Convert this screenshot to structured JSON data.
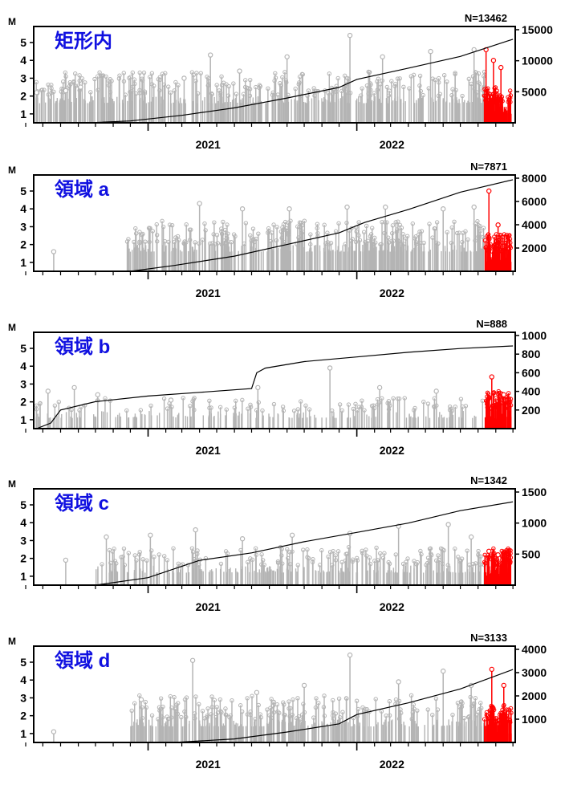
{
  "chart_data": [
    {
      "type": "line",
      "title": "矩形内",
      "count_label": "N=13462",
      "ylabel": "M",
      "x_range": [
        "2020-06-15",
        "2022-10-05"
      ],
      "x_tick_labels": [
        "2021",
        "2022"
      ],
      "mag_range": [
        0.5,
        5.9
      ],
      "mag_ticks": [
        1,
        2,
        3,
        4,
        5
      ],
      "count_range": [
        0,
        15000
      ],
      "count_ticks": [
        5000,
        10000,
        15000
      ],
      "series": [
        {
          "type": "line",
          "points": [
            [
              "2020-09-20",
              0
            ],
            [
              "2020-12-01",
              300
            ],
            [
              "2021-03-01",
              1200
            ],
            [
              "2021-06-01",
              2400
            ],
            [
              "2021-09-01",
              4000
            ],
            [
              "2021-12-01",
              5700
            ],
            [
              "2022-01-01",
              7000
            ],
            [
              "2022-04-01",
              8800
            ],
            [
              "2022-07-01",
              10700
            ],
            [
              "2022-10-01",
              13462
            ]
          ]
        },
        {
          "type": "stem",
          "color": "gray",
          "peaks": [
            [
              "2020-06-20",
              2.2
            ],
            [
              "2020-08-10",
              2.3
            ],
            [
              "2020-09-05",
              2.5
            ],
            [
              "2021-03-05",
              3.0
            ],
            [
              "2021-04-20",
              4.3
            ],
            [
              "2021-06-10",
              3.4
            ],
            [
              "2021-09-01",
              4.2
            ],
            [
              "2021-12-20",
              5.4
            ],
            [
              "2022-02-15",
              4.2
            ],
            [
              "2022-05-10",
              4.5
            ],
            [
              "2022-07-25",
              4.6
            ]
          ]
        },
        {
          "type": "stem",
          "color": "red",
          "peaks": [
            [
              "2022-08-15",
              4.6
            ],
            [
              "2022-08-28",
              4.0
            ],
            [
              "2022-09-10",
              3.6
            ]
          ]
        }
      ]
    },
    {
      "type": "line",
      "title": "領域 a",
      "count_label": "N=7871",
      "ylabel": "M",
      "x_range": [
        "2020-06-15",
        "2022-10-05"
      ],
      "x_tick_labels": [
        "2021",
        "2022"
      ],
      "mag_range": [
        0.5,
        5.9
      ],
      "mag_ticks": [
        1,
        2,
        3,
        4,
        5
      ],
      "count_range": [
        0,
        8000
      ],
      "count_ticks": [
        2000,
        4000,
        6000,
        8000
      ],
      "series": [
        {
          "type": "line",
          "points": [
            [
              "2020-12-01",
              0
            ],
            [
              "2021-02-15",
              500
            ],
            [
              "2021-06-01",
              1300
            ],
            [
              "2021-09-01",
              2300
            ],
            [
              "2021-12-01",
              3300
            ],
            [
              "2022-01-15",
              4200
            ],
            [
              "2022-04-01",
              5300
            ],
            [
              "2022-07-01",
              6800
            ],
            [
              "2022-10-01",
              7871
            ]
          ]
        },
        {
          "type": "stem",
          "color": "gray",
          "peaks": [
            [
              "2020-07-20",
              1.6
            ],
            [
              "2021-04-01",
              4.3
            ],
            [
              "2021-06-15",
              4.0
            ],
            [
              "2021-09-05",
              4.0
            ],
            [
              "2021-12-15",
              4.1
            ],
            [
              "2022-02-20",
              4.1
            ],
            [
              "2022-06-01",
              4.0
            ],
            [
              "2022-07-25",
              4.1
            ]
          ]
        },
        {
          "type": "stem",
          "color": "red",
          "peaks": [
            [
              "2022-08-20",
              5.0
            ],
            [
              "2022-09-05",
              3.1
            ]
          ]
        }
      ]
    },
    {
      "type": "line",
      "title": "領域 b",
      "count_label": "N=888",
      "ylabel": "M",
      "x_range": [
        "2020-06-15",
        "2022-10-05"
      ],
      "x_tick_labels": [
        "2021",
        "2022"
      ],
      "mag_range": [
        0.5,
        5.9
      ],
      "mag_ticks": [
        1,
        2,
        3,
        4,
        5
      ],
      "count_range": [
        0,
        1000
      ],
      "count_ticks": [
        200,
        400,
        600,
        800,
        1000
      ],
      "series": [
        {
          "type": "line",
          "points": [
            [
              "2020-06-20",
              0
            ],
            [
              "2020-07-15",
              60
            ],
            [
              "2020-08-01",
              200
            ],
            [
              "2020-10-01",
              290
            ],
            [
              "2021-01-01",
              350
            ],
            [
              "2021-04-01",
              390
            ],
            [
              "2021-07-01",
              430
            ],
            [
              "2021-07-10",
              600
            ],
            [
              "2021-07-25",
              650
            ],
            [
              "2021-10-01",
              720
            ],
            [
              "2022-01-01",
              770
            ],
            [
              "2022-04-01",
              820
            ],
            [
              "2022-07-01",
              860
            ],
            [
              "2022-10-01",
              888
            ]
          ]
        },
        {
          "type": "stem",
          "color": "gray",
          "peaks": [
            [
              "2020-07-10",
              2.6
            ],
            [
              "2020-08-25",
              2.8
            ],
            [
              "2020-10-05",
              2.4
            ],
            [
              "2021-02-10",
              2.1
            ],
            [
              "2021-07-12",
              2.8
            ],
            [
              "2021-11-15",
              3.9
            ],
            [
              "2022-02-10",
              2.8
            ],
            [
              "2022-05-20",
              2.6
            ]
          ]
        },
        {
          "type": "stem",
          "color": "red",
          "peaks": [
            [
              "2022-08-25",
              3.4
            ],
            [
              "2022-09-15",
              2.4
            ]
          ]
        }
      ]
    },
    {
      "type": "line",
      "title": "領域 c",
      "count_label": "N=1342",
      "ylabel": "M",
      "x_range": [
        "2020-06-15",
        "2022-10-05"
      ],
      "x_tick_labels": [
        "2021",
        "2022"
      ],
      "mag_range": [
        0.5,
        5.9
      ],
      "mag_ticks": [
        1,
        2,
        3,
        4,
        5
      ],
      "count_range": [
        0,
        1500
      ],
      "count_ticks": [
        500,
        1000,
        1500
      ],
      "series": [
        {
          "type": "line",
          "points": [
            [
              "2020-10-01",
              0
            ],
            [
              "2021-01-01",
              120
            ],
            [
              "2021-04-01",
              400
            ],
            [
              "2021-07-01",
              520
            ],
            [
              "2021-10-01",
              700
            ],
            [
              "2022-01-01",
              850
            ],
            [
              "2022-04-01",
              1000
            ],
            [
              "2022-07-01",
              1200
            ],
            [
              "2022-10-01",
              1342
            ]
          ]
        },
        {
          "type": "stem",
          "color": "gray",
          "peaks": [
            [
              "2020-08-10",
              1.9
            ],
            [
              "2020-10-20",
              3.2
            ],
            [
              "2021-01-05",
              3.3
            ],
            [
              "2021-03-25",
              3.6
            ],
            [
              "2021-06-15",
              3.1
            ],
            [
              "2021-09-10",
              3.3
            ],
            [
              "2021-12-20",
              3.4
            ],
            [
              "2022-03-15",
              3.8
            ],
            [
              "2022-06-10",
              3.9
            ],
            [
              "2022-07-20",
              3.2
            ]
          ]
        },
        {
          "type": "stem",
          "color": "red",
          "peaks": [
            [
              "2022-08-20",
              2.4
            ],
            [
              "2022-09-05",
              2.2
            ]
          ]
        }
      ]
    },
    {
      "type": "line",
      "title": "領域 d",
      "count_label": "N=3133",
      "ylabel": "M",
      "x_range": [
        "2020-06-15",
        "2022-10-05"
      ],
      "x_tick_labels": [
        "2021",
        "2022"
      ],
      "mag_range": [
        0.5,
        5.9
      ],
      "mag_ticks": [
        1,
        2,
        3,
        4,
        5
      ],
      "count_range": [
        0,
        4000
      ],
      "count_ticks": [
        1000,
        2000,
        3000,
        4000
      ],
      "series": [
        {
          "type": "line",
          "points": [
            [
              "2021-02-15",
              0
            ],
            [
              "2021-06-01",
              150
            ],
            [
              "2021-09-01",
              450
            ],
            [
              "2021-12-01",
              800
            ],
            [
              "2022-01-01",
              1200
            ],
            [
              "2022-04-01",
              1700
            ],
            [
              "2022-07-01",
              2300
            ],
            [
              "2022-10-01",
              3133
            ]
          ]
        },
        {
          "type": "stem",
          "color": "gray",
          "peaks": [
            [
              "2020-07-20",
              1.1
            ],
            [
              "2020-12-20",
              2.9
            ],
            [
              "2021-03-20",
              5.1
            ],
            [
              "2021-07-10",
              3.3
            ],
            [
              "2021-10-01",
              3.7
            ],
            [
              "2021-12-20",
              5.4
            ],
            [
              "2022-03-15",
              3.9
            ],
            [
              "2022-06-01",
              4.5
            ],
            [
              "2022-07-20",
              3.7
            ]
          ]
        },
        {
          "type": "stem",
          "color": "red",
          "peaks": [
            [
              "2022-08-25",
              4.6
            ],
            [
              "2022-09-15",
              3.7
            ]
          ]
        }
      ]
    }
  ]
}
